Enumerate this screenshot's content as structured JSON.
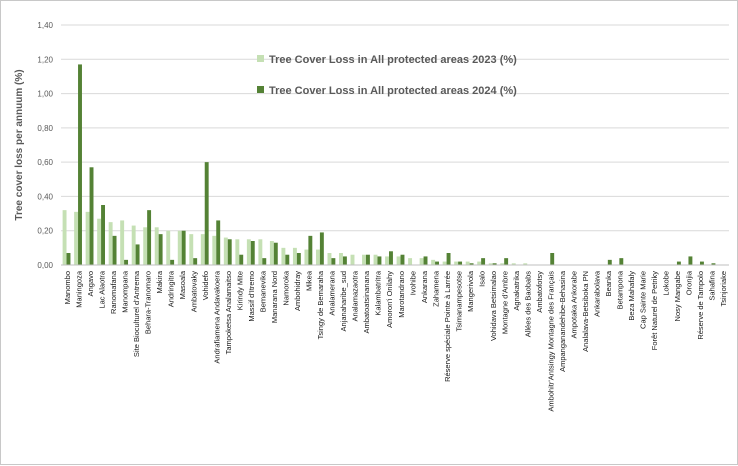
{
  "chart_data": {
    "type": "bar",
    "ylabel": "Tree cover loss per annuum (%)",
    "ylim": [
      0,
      1.4
    ],
    "yticks": [
      "0,00",
      "0,20",
      "0,40",
      "0,60",
      "0,80",
      "1,00",
      "1,20",
      "1,40"
    ],
    "grid": true,
    "legend_position": "top-center",
    "colors": {
      "series_2023": "#c5e0b4",
      "series_2024": "#548235"
    },
    "categories": [
      "Manombo",
      "Maningoza",
      "Angavo",
      "Lac Alaotra",
      "Ranomafana",
      "Manompana",
      "Site Bioculturel d'Antrema",
      "Behara-Tranomaro",
      "Makira",
      "Andringitra",
      "Masoala",
      "Ambatovaky",
      "Vohidefo",
      "Andrafiamena Andavakoera",
      "Tampoketsa Analamaitso",
      "Kirindy Mite",
      "Massif d'Itremo",
      "Bemanevika",
      "Manarana Nord",
      "Namoroka",
      "Ambohidray",
      "Mikea",
      "Tsingy de Bemaraha",
      "Analamerana",
      "Anjanaharibe_sud",
      "Analamazaotra",
      "Ambatoatsinanana",
      "Kalambatritra",
      "Amoron'i Onilahy",
      "Marotandrano",
      "Ivohibe",
      "Ankarana",
      "Zahamena",
      "Réserve spéciale Pointe à Larrée",
      "Tsimanampesotse",
      "Mangerivola",
      "Isalo",
      "Vohidava Betsimalao",
      "Montagne d'Ambre",
      "Agnakatrika",
      "Allées des Baobabs",
      "Ambatofotsy",
      "Ambohitr'Antsingy Montagne des Français",
      "Ampanganandehibe-Behasina",
      "Ampotaka Ankorabe",
      "Analalava-Betsiboka PN",
      "Ankarabolava",
      "Beanka",
      "Betampona",
      "Beza Mahafaly",
      "Cap Sainte Marie",
      "Forêt Naturel de Petriky",
      "Lokobe",
      "Nosy Mangabe",
      "Oronjia",
      "Réserve de Tampolo",
      "Sahafina",
      "Tsinjoriake"
    ],
    "series": [
      {
        "name": "Tree Cover Loss in All protected areas 2023 (%)",
        "values": [
          0.32,
          0.31,
          0.31,
          0.27,
          0.25,
          0.26,
          0.23,
          0.22,
          0.22,
          0.2,
          0.2,
          0.18,
          0.18,
          0.17,
          0.16,
          0.15,
          0.15,
          0.15,
          0.14,
          0.1,
          0.1,
          0.09,
          0.09,
          0.07,
          0.07,
          0.06,
          0.06,
          0.06,
          0.05,
          0.05,
          0.04,
          0.04,
          0.03,
          0.02,
          0.02,
          0.02,
          0.02,
          0.01,
          0.01,
          0.01,
          0.01,
          0,
          0,
          0,
          0,
          0,
          0,
          0,
          0,
          0,
          0,
          0,
          0,
          0,
          0,
          0,
          0,
          0
        ]
      },
      {
        "name": "Tree Cover Loss in All protected areas 2024 (%)",
        "values": [
          0.07,
          1.17,
          0.57,
          0.35,
          0.17,
          0.03,
          0.12,
          0.32,
          0.18,
          0.03,
          0.2,
          0.04,
          0.6,
          0.26,
          0.15,
          0.06,
          0.14,
          0.04,
          0.13,
          0.06,
          0.07,
          0.17,
          0.19,
          0.04,
          0.05,
          0.0,
          0.06,
          0.05,
          0.08,
          0.06,
          0.0,
          0.05,
          0.02,
          0.07,
          0.02,
          0.01,
          0.04,
          0.01,
          0.04,
          0.0,
          0.0,
          0.0,
          0.07,
          0.0,
          0.0,
          0.0,
          0.0,
          0.03,
          0.04,
          0.0,
          0.0,
          0.0,
          0.0,
          0.02,
          0.05,
          0.02,
          0.01,
          0.0
        ]
      }
    ]
  }
}
